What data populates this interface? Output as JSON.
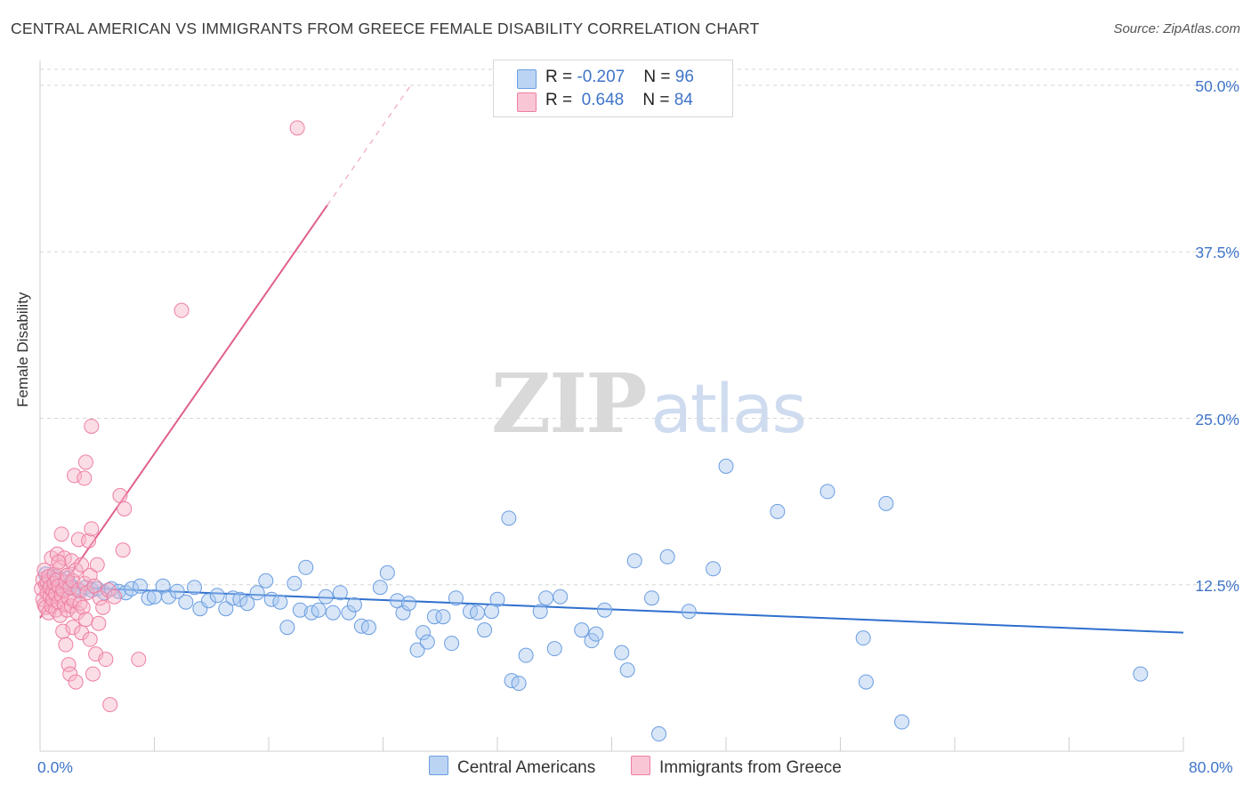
{
  "title": "CENTRAL AMERICAN VS IMMIGRANTS FROM GREECE FEMALE DISABILITY CORRELATION CHART",
  "source": "Source: ZipAtlas.com",
  "watermark": {
    "zip": "ZIP",
    "atlas": "atlas"
  },
  "legend_top": {
    "row1": {
      "r_label": "R = ",
      "r_value": "-0.207",
      "n_label": "N = ",
      "n_value": "96"
    },
    "row2": {
      "r_label": "R = ",
      "r_value": " 0.648",
      "n_label": "N = ",
      "n_value": "84"
    }
  },
  "legend_bottom": {
    "series1": "Central Americans",
    "series2": "Immigrants from Greece"
  },
  "colors": {
    "blue_fill": "#a8c8f0",
    "blue_stroke": "#6a9de0",
    "blue_line": "#2f6fce",
    "pink_fill": "#f7b4c8",
    "pink_stroke": "#ee7fa2",
    "pink_line": "#e0608c",
    "axis_text": "#3f74c9",
    "grid": "#d6d6d6"
  },
  "chart_data": {
    "type": "scatter",
    "title": "CENTRAL AMERICAN VS IMMIGRANTS FROM GREECE FEMALE DISABILITY CORRELATION CHART",
    "xlabel": "",
    "ylabel": "Female Disability",
    "xlim": [
      0,
      80
    ],
    "ylim": [
      0,
      50
    ],
    "x_tick_labels": [
      "0.0%",
      "80.0%"
    ],
    "y_tick_labels": [
      "12.5%",
      "25.0%",
      "37.5%",
      "50.0%"
    ],
    "y_ticks": [
      12.5,
      25.0,
      37.5,
      50.0
    ],
    "grid": "horizontal dashed",
    "series": [
      {
        "name": "Central Americans",
        "r": -0.207,
        "n": 96,
        "trend": {
          "x0": 0,
          "y0": 12.4,
          "x1": 80,
          "y1": 8.9
        },
        "points": [
          [
            0.4,
            13.3
          ],
          [
            0.6,
            12.8
          ],
          [
            0.8,
            12.6
          ],
          [
            1.0,
            13.1
          ],
          [
            1.2,
            12.4
          ],
          [
            1.4,
            12.9
          ],
          [
            1.6,
            12.2
          ],
          [
            1.9,
            13.0
          ],
          [
            2.1,
            12.5
          ],
          [
            2.4,
            12.2
          ],
          [
            2.8,
            12.0
          ],
          [
            3.2,
            12.3
          ],
          [
            3.6,
            12.1
          ],
          [
            4.0,
            12.2
          ],
          [
            4.5,
            11.9
          ],
          [
            5.0,
            12.2
          ],
          [
            5.5,
            12.0
          ],
          [
            6.0,
            11.9
          ],
          [
            6.4,
            12.2
          ],
          [
            7.0,
            12.4
          ],
          [
            7.6,
            11.5
          ],
          [
            8.0,
            11.6
          ],
          [
            8.6,
            12.4
          ],
          [
            9.0,
            11.6
          ],
          [
            9.6,
            12.0
          ],
          [
            10.2,
            11.2
          ],
          [
            10.8,
            12.3
          ],
          [
            11.2,
            10.7
          ],
          [
            11.8,
            11.3
          ],
          [
            12.4,
            11.7
          ],
          [
            13.0,
            10.7
          ],
          [
            13.5,
            11.5
          ],
          [
            14.0,
            11.4
          ],
          [
            14.5,
            11.1
          ],
          [
            15.2,
            11.9
          ],
          [
            15.8,
            12.8
          ],
          [
            16.2,
            11.4
          ],
          [
            16.8,
            11.2
          ],
          [
            17.3,
            9.3
          ],
          [
            17.8,
            12.6
          ],
          [
            18.2,
            10.6
          ],
          [
            18.6,
            13.8
          ],
          [
            19.0,
            10.4
          ],
          [
            19.5,
            10.6
          ],
          [
            20.0,
            11.6
          ],
          [
            20.5,
            10.4
          ],
          [
            21.0,
            11.9
          ],
          [
            21.6,
            10.4
          ],
          [
            22.0,
            11.0
          ],
          [
            22.5,
            9.4
          ],
          [
            23.0,
            9.3
          ],
          [
            23.8,
            12.3
          ],
          [
            24.3,
            13.4
          ],
          [
            25.0,
            11.3
          ],
          [
            25.4,
            10.4
          ],
          [
            25.8,
            11.1
          ],
          [
            26.4,
            7.6
          ],
          [
            26.8,
            8.9
          ],
          [
            27.1,
            8.2
          ],
          [
            27.6,
            10.1
          ],
          [
            28.2,
            10.1
          ],
          [
            28.8,
            8.1
          ],
          [
            29.1,
            11.5
          ],
          [
            30.1,
            10.5
          ],
          [
            30.6,
            10.4
          ],
          [
            31.1,
            9.1
          ],
          [
            31.6,
            10.5
          ],
          [
            32.0,
            11.4
          ],
          [
            32.8,
            17.5
          ],
          [
            33.0,
            5.3
          ],
          [
            33.5,
            5.1
          ],
          [
            34.0,
            7.2
          ],
          [
            35.0,
            10.5
          ],
          [
            35.4,
            11.5
          ],
          [
            36.0,
            7.7
          ],
          [
            36.4,
            11.6
          ],
          [
            37.9,
            9.1
          ],
          [
            38.6,
            8.3
          ],
          [
            38.9,
            8.8
          ],
          [
            39.5,
            10.6
          ],
          [
            40.7,
            7.4
          ],
          [
            41.1,
            6.1
          ],
          [
            41.6,
            14.3
          ],
          [
            42.8,
            11.5
          ],
          [
            43.3,
            1.3
          ],
          [
            43.9,
            14.6
          ],
          [
            45.4,
            10.5
          ],
          [
            47.1,
            13.7
          ],
          [
            48.0,
            21.4
          ],
          [
            51.6,
            18.0
          ],
          [
            55.1,
            19.5
          ],
          [
            57.6,
            8.5
          ],
          [
            57.8,
            5.2
          ],
          [
            59.2,
            18.6
          ],
          [
            60.3,
            2.2
          ],
          [
            77.0,
            5.8
          ]
        ]
      },
      {
        "name": "Immigrants from Greece",
        "r": 0.648,
        "n": 84,
        "trend": {
          "x0": 0,
          "y0": 10.0,
          "x1": 20.1,
          "y1": 41.0
        },
        "points": [
          [
            0.1,
            12.2
          ],
          [
            0.2,
            11.4
          ],
          [
            0.2,
            12.9
          ],
          [
            0.3,
            11.0
          ],
          [
            0.3,
            13.6
          ],
          [
            0.4,
            12.5
          ],
          [
            0.4,
            10.8
          ],
          [
            0.5,
            11.9
          ],
          [
            0.5,
            12.7
          ],
          [
            0.6,
            10.4
          ],
          [
            0.6,
            13.1
          ],
          [
            0.7,
            11.6
          ],
          [
            0.7,
            12.3
          ],
          [
            0.8,
            14.5
          ],
          [
            0.8,
            10.9
          ],
          [
            0.9,
            12.0
          ],
          [
            0.9,
            11.4
          ],
          [
            1.0,
            13.3
          ],
          [
            1.0,
            12.6
          ],
          [
            1.1,
            10.6
          ],
          [
            1.1,
            11.8
          ],
          [
            1.2,
            12.9
          ],
          [
            1.2,
            14.8
          ],
          [
            1.3,
            11.2
          ],
          [
            1.3,
            12.4
          ],
          [
            1.4,
            10.2
          ],
          [
            1.4,
            13.8
          ],
          [
            1.5,
            11.7
          ],
          [
            1.5,
            16.3
          ],
          [
            1.6,
            12.1
          ],
          [
            1.6,
            9.0
          ],
          [
            1.7,
            14.5
          ],
          [
            1.7,
            11.0
          ],
          [
            1.8,
            12.7
          ],
          [
            1.8,
            8.0
          ],
          [
            1.9,
            10.6
          ],
          [
            1.9,
            13.2
          ],
          [
            2.0,
            11.5
          ],
          [
            2.0,
            6.5
          ],
          [
            2.1,
            12.3
          ],
          [
            2.1,
            5.8
          ],
          [
            2.2,
            14.3
          ],
          [
            2.2,
            10.9
          ],
          [
            2.3,
            9.3
          ],
          [
            2.3,
            12.8
          ],
          [
            2.4,
            11.3
          ],
          [
            2.4,
            20.7
          ],
          [
            2.5,
            5.2
          ],
          [
            2.5,
            13.6
          ],
          [
            2.6,
            10.4
          ],
          [
            2.7,
            15.9
          ],
          [
            2.7,
            12.1
          ],
          [
            2.8,
            11.1
          ],
          [
            2.9,
            8.9
          ],
          [
            2.9,
            14.0
          ],
          [
            3.0,
            10.8
          ],
          [
            3.1,
            20.5
          ],
          [
            3.1,
            12.6
          ],
          [
            3.2,
            21.7
          ],
          [
            3.2,
            9.9
          ],
          [
            3.3,
            11.9
          ],
          [
            3.4,
            15.8
          ],
          [
            3.5,
            8.4
          ],
          [
            3.5,
            13.2
          ],
          [
            3.6,
            24.4
          ],
          [
            3.6,
            16.7
          ],
          [
            3.7,
            5.8
          ],
          [
            3.8,
            12.4
          ],
          [
            3.9,
            7.3
          ],
          [
            4.0,
            14.0
          ],
          [
            4.1,
            9.6
          ],
          [
            4.2,
            11.5
          ],
          [
            4.4,
            10.8
          ],
          [
            4.6,
            6.9
          ],
          [
            4.8,
            12.1
          ],
          [
            4.9,
            3.5
          ],
          [
            5.2,
            11.6
          ],
          [
            5.6,
            19.2
          ],
          [
            5.8,
            15.1
          ],
          [
            5.9,
            18.2
          ],
          [
            6.9,
            6.9
          ],
          [
            9.9,
            33.1
          ],
          [
            18.0,
            46.8
          ],
          [
            1.3,
            14.2
          ]
        ]
      }
    ]
  }
}
